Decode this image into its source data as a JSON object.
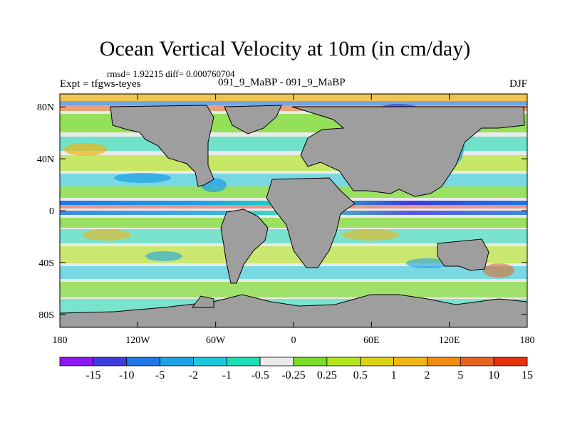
{
  "chart_data": {
    "type": "heatmap",
    "title": "Ocean Vertical Velocity at 10m (in cm/day)",
    "stats": "rmsd= 1.92215 diff= 0.000760704",
    "experiment": "Expt = tfgws-teyes",
    "subtitle": "091_9_MaBP - 091_9_MaBP",
    "season": "DJF",
    "xlabel": "",
    "ylabel": "",
    "xlim": [
      -180,
      180
    ],
    "ylim": [
      -90,
      90
    ],
    "x_ticks": [
      {
        "value": -180,
        "label": "180"
      },
      {
        "value": -120,
        "label": "120W"
      },
      {
        "value": -60,
        "label": "60W"
      },
      {
        "value": 0,
        "label": "0"
      },
      {
        "value": 60,
        "label": "60E"
      },
      {
        "value": 120,
        "label": "120E"
      },
      {
        "value": 180,
        "label": "180"
      }
    ],
    "y_ticks": [
      {
        "value": 80,
        "label": "80N"
      },
      {
        "value": 40,
        "label": "40N"
      },
      {
        "value": 0,
        "label": "0"
      },
      {
        "value": -40,
        "label": "40S"
      },
      {
        "value": -80,
        "label": "80S"
      }
    ],
    "colorbar": {
      "levels": [
        "-15",
        "-10",
        "-5",
        "-2",
        "-1",
        "-0.5",
        "-0.25",
        "0.25",
        "0.5",
        "1",
        "2",
        "5",
        "10",
        "15"
      ],
      "colors": [
        "#8c19f0",
        "#3c3cdc",
        "#1e78e6",
        "#1ea0e6",
        "#1ec8dc",
        "#1edcb4",
        "#eaeaea",
        "#78dc28",
        "#b4e61e",
        "#dcd214",
        "#f0b414",
        "#f08c14",
        "#e6641e",
        "#e6320a"
      ]
    },
    "land_color": "#9e9e9e"
  }
}
